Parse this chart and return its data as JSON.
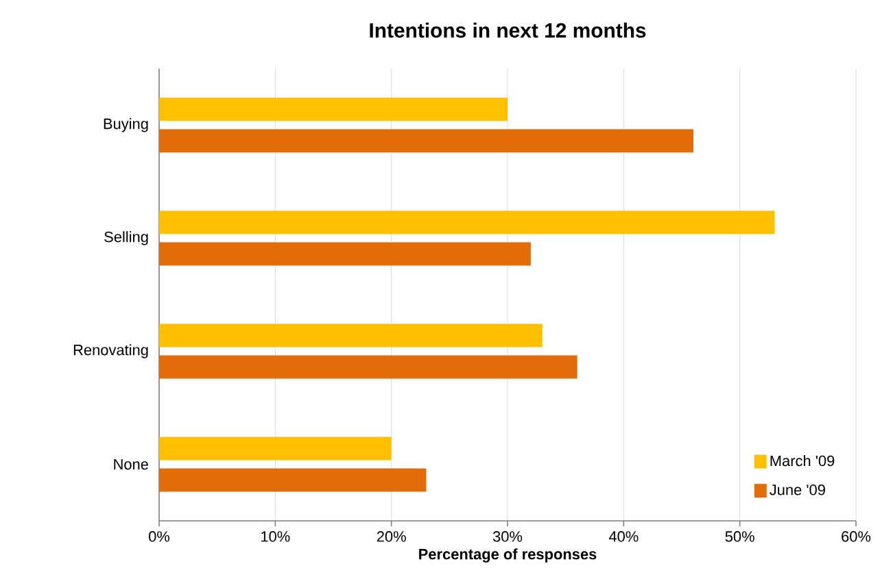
{
  "chart_data": {
    "type": "bar",
    "orientation": "horizontal",
    "title": "Intentions in next 12 months",
    "xlabel": "Percentage of responses",
    "categories": [
      "Buying",
      "Selling",
      "Renovating",
      "None"
    ],
    "series": [
      {
        "name": "March '09",
        "color": "#ffc000",
        "values": [
          30,
          53,
          33,
          20
        ]
      },
      {
        "name": "June '09",
        "color": "#e36c0a",
        "values": [
          46,
          32,
          36,
          23
        ]
      }
    ],
    "xlim": [
      0,
      60
    ],
    "xticks": [
      {
        "value": 0,
        "label": "0%"
      },
      {
        "value": 10,
        "label": "10%"
      },
      {
        "value": 20,
        "label": "20%"
      },
      {
        "value": 30,
        "label": "30%"
      },
      {
        "value": 40,
        "label": "40%"
      },
      {
        "value": 50,
        "label": "50%"
      },
      {
        "value": 60,
        "label": "60%"
      }
    ],
    "grid": "x",
    "legend": "bottom right"
  }
}
